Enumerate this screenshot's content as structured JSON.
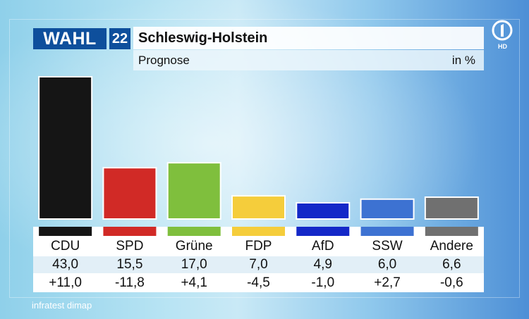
{
  "header": {
    "logo_text": "WAHL",
    "year": "22",
    "state": "Schleswig-Holstein",
    "subtitle": "Prognose",
    "unit": "in %"
  },
  "broadcaster": {
    "logo": "ard-one-logo",
    "badge": "HD"
  },
  "footer": {
    "source": "infratest dimap"
  },
  "chart_data": {
    "type": "bar",
    "categories": [
      "CDU",
      "SPD",
      "Grüne",
      "FDP",
      "AfD",
      "SSW",
      "Andere"
    ],
    "values": [
      43.0,
      15.5,
      17.0,
      7.0,
      4.9,
      6.0,
      6.6
    ],
    "value_labels": [
      "43,0",
      "15,5",
      "17,0",
      "7,0",
      "4,9",
      "6,0",
      "6,6"
    ],
    "changes": [
      11.0,
      -11.8,
      4.1,
      -4.5,
      -1.0,
      2.7,
      -0.6
    ],
    "change_labels": [
      "+11,0",
      "-11,8",
      "+4,1",
      "-4,5",
      "-1,0",
      "+2,7",
      "-0,6"
    ],
    "colors": [
      "#151515",
      "#d12a26",
      "#7fbf3d",
      "#f5cd3b",
      "#1428c8",
      "#3d72d2",
      "#707070"
    ],
    "ylim": [
      0,
      43
    ]
  }
}
